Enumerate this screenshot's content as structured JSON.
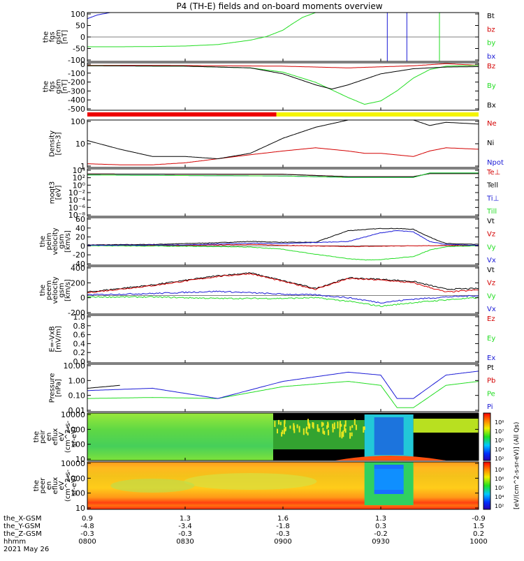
{
  "title": "P4 (TH-E) fields and on-board moments overview",
  "colors": {
    "black": "#000000",
    "red": "#d40000",
    "green": "#22dd22",
    "blue": "#1a1ad6",
    "orbit_red": "#ee0000",
    "orbit_yellow": "#f4f400"
  },
  "chart_data": [
    {
      "type": "line",
      "panel": "fgs-gsm",
      "ylabel": [
        "the",
        "fgs",
        "gsm",
        "[nT]"
      ],
      "yticks": [
        "100",
        "50",
        "0",
        "-50",
        "-100"
      ],
      "ylim": [
        -100,
        100
      ],
      "grid": false,
      "legend_placement": "right",
      "series": [
        {
          "name": "Bt",
          "color": "black",
          "x": [],
          "y": []
        },
        {
          "name": "bz",
          "color": "red",
          "x": [],
          "y": []
        },
        {
          "name": "by",
          "color": "green",
          "x": [
            "08:00",
            "08:10",
            "08:20",
            "08:30",
            "08:40",
            "08:50",
            "08:55",
            "09:00",
            "09:03",
            "09:06",
            "09:10"
          ],
          "y": [
            -40,
            -40,
            -39,
            -37,
            -31,
            -13,
            2,
            28,
            55,
            80,
            100
          ]
        },
        {
          "name": "bx",
          "color": "blue",
          "x": [
            "08:00",
            "08:03",
            "08:07"
          ],
          "y": [
            75,
            90,
            100
          ]
        }
      ],
      "vertical_traces": [
        {
          "color": "blue",
          "x": [
            "09:32",
            "09:38"
          ]
        },
        {
          "color": "green",
          "x": [
            "09:48"
          ]
        }
      ]
    },
    {
      "type": "line",
      "panel": "fgs-gsm-large",
      "ylabel": [
        "the",
        "fgs",
        "gsm",
        "[nT]"
      ],
      "yticks": [
        "0",
        "-100",
        "-200",
        "-300",
        "-400",
        "-500"
      ],
      "ylim": [
        -530,
        30
      ],
      "grid": false,
      "legend_placement": "right",
      "series": [
        {
          "name": "Bz",
          "color": "red",
          "x": [
            "08:00",
            "08:30",
            "09:00",
            "09:20",
            "09:40",
            "09:50",
            "10:00"
          ],
          "y": [
            0,
            -2,
            -10,
            -30,
            -5,
            20,
            0
          ]
        },
        {
          "name": "By",
          "color": "green",
          "x": [
            "08:00",
            "08:30",
            "08:50",
            "09:00",
            "09:10",
            "09:20",
            "09:25",
            "09:30",
            "09:35",
            "09:40",
            "09:45",
            "09:50",
            "10:00"
          ],
          "y": [
            -5,
            -10,
            -30,
            -80,
            -200,
            -380,
            -460,
            -420,
            -300,
            -150,
            -50,
            -10,
            0
          ]
        },
        {
          "name": "Bx",
          "color": "black",
          "x": [
            "08:00",
            "08:30",
            "08:50",
            "09:00",
            "09:10",
            "09:15",
            "09:20",
            "09:30",
            "09:40",
            "09:50",
            "10:00"
          ],
          "y": [
            -5,
            -10,
            -30,
            -100,
            -230,
            -280,
            -230,
            -100,
            -40,
            -20,
            -15
          ]
        }
      ]
    },
    {
      "type": "line",
      "panel": "density",
      "scale": "log",
      "ylabel": [
        "Density",
        "[cm-3]"
      ],
      "yticks": [
        "100",
        "10",
        "1"
      ],
      "ylim": [
        0.5,
        200
      ],
      "grid": false,
      "legend_placement": "right",
      "series": [
        {
          "name": "Ne",
          "color": "red",
          "x": [
            "08:00",
            "08:10",
            "08:20",
            "08:30",
            "08:40",
            "08:50",
            "09:00",
            "09:10",
            "09:20",
            "09:25",
            "09:30",
            "09:40",
            "09:45",
            "09:50",
            "10:00"
          ],
          "y": [
            0.8,
            0.7,
            0.7,
            0.9,
            1.5,
            2.5,
            4,
            6,
            4,
            3,
            3,
            2,
            4,
            6,
            5
          ]
        },
        {
          "name": "Ni",
          "color": "black",
          "x": [
            "08:00",
            "08:10",
            "08:20",
            "08:30",
            "08:40",
            "08:50",
            "09:00",
            "09:10",
            "09:20",
            "09:30",
            "09:40",
            "09:45",
            "09:50",
            "10:00"
          ],
          "y": [
            15,
            5,
            2,
            2,
            1.5,
            3,
            20,
            80,
            200,
            200,
            200,
            100,
            150,
            120
          ]
        },
        {
          "name": "Npot",
          "color": "blue",
          "x": [],
          "y": []
        }
      ]
    },
    {
      "type": "line",
      "panel": "temperature",
      "scale": "log",
      "ylabel": [
        "moqt3",
        "[eV]"
      ],
      "yticks": [
        "10⁴",
        "10²",
        "10⁰",
        "10⁻²",
        "10⁻⁴",
        "10⁻⁶",
        "10⁻⁸"
      ],
      "ylim": [
        1e-09,
        100000.0
      ],
      "grid": false,
      "legend_placement": "right",
      "series": [
        {
          "name": "Te⊥",
          "color": "red",
          "x": [
            "08:00",
            "09:00",
            "09:20",
            "09:40",
            "09:45",
            "10:00"
          ],
          "y": [
            3000,
            2500,
            500,
            500,
            4000,
            4000
          ]
        },
        {
          "name": "Tell",
          "color": "black",
          "x": [
            "08:00",
            "09:00",
            "09:20",
            "09:40",
            "09:45",
            "10:00"
          ],
          "y": [
            3000,
            2500,
            500,
            500,
            4000,
            4000
          ]
        },
        {
          "name": "Ti⊥",
          "color": "blue",
          "x": [
            "08:00",
            "09:00",
            "09:20",
            "09:40",
            "09:45",
            "10:00"
          ],
          "y": [
            1500,
            800,
            300,
            300,
            6000,
            6000
          ]
        },
        {
          "name": "Till",
          "color": "green",
          "x": [
            "08:00",
            "09:00",
            "09:20",
            "09:40",
            "09:45",
            "10:00"
          ],
          "y": [
            1500,
            800,
            300,
            300,
            6000,
            6000
          ]
        }
      ]
    },
    {
      "type": "line",
      "panel": "peim-velocity",
      "ylabel": [
        "the",
        "peim",
        "velocity",
        "gsm",
        "[km/s]"
      ],
      "yticks": [
        "60",
        "40",
        "20",
        "0",
        "-20",
        "-40"
      ],
      "ylim": [
        -45,
        65
      ],
      "grid": false,
      "legend_placement": "right",
      "series": [
        {
          "name": "Vt",
          "color": "black",
          "x": [
            "08:00",
            "08:20",
            "08:40",
            "08:50",
            "09:00",
            "09:10",
            "09:20",
            "09:30",
            "09:35",
            "09:40",
            "09:45",
            "09:50",
            "10:00"
          ],
          "y": [
            2,
            3,
            7,
            10,
            8,
            8,
            35,
            40,
            40,
            38,
            20,
            5,
            3
          ]
        },
        {
          "name": "Vz",
          "color": "red",
          "x": [
            "08:00",
            "08:30",
            "08:50",
            "09:00",
            "09:20",
            "09:40",
            "10:00"
          ],
          "y": [
            1,
            1,
            3,
            1,
            -2,
            0,
            1
          ]
        },
        {
          "name": "Vy",
          "color": "green",
          "x": [
            "08:00",
            "08:30",
            "08:50",
            "09:00",
            "09:10",
            "09:20",
            "09:25",
            "09:30",
            "09:40",
            "09:45",
            "09:50",
            "10:00"
          ],
          "y": [
            0,
            -1,
            -3,
            -8,
            -20,
            -30,
            -33,
            -32,
            -25,
            -10,
            -2,
            0
          ]
        },
        {
          "name": "Vx",
          "color": "blue",
          "x": [
            "08:00",
            "08:30",
            "08:50",
            "09:00",
            "09:20",
            "09:30",
            "09:35",
            "09:40",
            "09:45",
            "09:50",
            "10:00"
          ],
          "y": [
            1,
            2,
            6,
            5,
            10,
            30,
            35,
            32,
            10,
            3,
            1
          ]
        }
      ]
    },
    {
      "type": "line",
      "panel": "peem-velocity",
      "ylabel": [
        "the",
        "peem",
        "velocity",
        "gsm",
        "[km/s]"
      ],
      "yticks": [
        "400",
        "200",
        "0",
        "-200"
      ],
      "ylim": [
        -260,
        410
      ],
      "grid": false,
      "legend_placement": "right",
      "series": [
        {
          "name": "Vt",
          "color": "black",
          "x": [
            "08:00",
            "08:20",
            "08:40",
            "08:50",
            "09:00",
            "09:10",
            "09:20",
            "09:30",
            "09:40",
            "09:50",
            "10:00"
          ],
          "y": [
            50,
            150,
            280,
            320,
            210,
            100,
            250,
            230,
            200,
            90,
            100
          ]
        },
        {
          "name": "Vz",
          "color": "red",
          "x": [
            "08:00",
            "08:20",
            "08:40",
            "08:50",
            "09:00",
            "09:10",
            "09:20",
            "09:30",
            "09:40",
            "09:50",
            "10:00"
          ],
          "y": [
            40,
            140,
            270,
            310,
            200,
            90,
            240,
            220,
            180,
            50,
            80
          ]
        },
        {
          "name": "Vy",
          "color": "green",
          "x": [
            "08:00",
            "08:20",
            "08:40",
            "09:00",
            "09:10",
            "09:20",
            "09:30",
            "09:40",
            "09:50",
            "10:00"
          ],
          "y": [
            -20,
            -20,
            -40,
            -40,
            -30,
            -80,
            -150,
            -100,
            -60,
            -30
          ]
        },
        {
          "name": "Vx",
          "color": "blue",
          "x": [
            "08:00",
            "08:20",
            "08:40",
            "09:00",
            "09:10",
            "09:20",
            "09:30",
            "09:40",
            "09:50",
            "10:00"
          ],
          "y": [
            10,
            30,
            60,
            20,
            10,
            -30,
            -100,
            -50,
            -20,
            0
          ]
        }
      ]
    },
    {
      "type": "line",
      "panel": "e-field",
      "ylabel": [
        "E=-VxB",
        "[mV/m]"
      ],
      "yticks": [
        "1.0",
        "0.8",
        "0.6",
        "0.4",
        "0.2",
        "0.0"
      ],
      "ylim": [
        0,
        1
      ],
      "grid": false,
      "legend_placement": "right",
      "series": [
        {
          "name": "Ez",
          "color": "red",
          "x": [],
          "y": []
        },
        {
          "name": "Ey",
          "color": "green",
          "x": [],
          "y": []
        },
        {
          "name": "Ex",
          "color": "blue",
          "x": [],
          "y": []
        }
      ]
    },
    {
      "type": "line",
      "panel": "pressure",
      "scale": "log",
      "ylabel": [
        "Pressure",
        "[nPa]"
      ],
      "yticks": [
        "10.00",
        "1.00",
        "0.10",
        "0.01"
      ],
      "ylim": [
        0.005,
        20
      ],
      "grid": false,
      "legend_placement": "right",
      "series": [
        {
          "name": "Pt",
          "color": "black",
          "x": [
            "08:00",
            "08:10"
          ],
          "y": [
            0.3,
            0.5
          ]
        },
        {
          "name": "Pb",
          "color": "red",
          "x": [],
          "y": []
        },
        {
          "name": "Pe",
          "color": "green",
          "x": [
            "08:00",
            "08:20",
            "08:40",
            "09:00",
            "09:20",
            "09:30",
            "09:35",
            "09:40",
            "09:50",
            "10:00"
          ],
          "y": [
            0.05,
            0.06,
            0.05,
            0.4,
            1,
            0.5,
            0.01,
            0.01,
            0.5,
            1
          ]
        },
        {
          "name": "Pi",
          "color": "blue",
          "x": [
            "08:00",
            "08:20",
            "08:40",
            "09:00",
            "09:20",
            "09:30",
            "09:35",
            "09:40",
            "09:50",
            "10:00"
          ],
          "y": [
            0.2,
            0.3,
            0.05,
            1,
            5,
            3,
            0.05,
            0.05,
            3,
            6
          ]
        }
      ]
    },
    {
      "type": "heatmap",
      "panel": "peir-en-eflux",
      "ylabel": [
        "the",
        "peir",
        "en",
        "eflux",
        "eV",
        "(cm^2-s-",
        "sr-eV)"
      ],
      "yticks": [
        "10000",
        "1000",
        "100",
        "10"
      ],
      "ylim": [
        7,
        20000
      ],
      "scale": "log"
    },
    {
      "type": "heatmap",
      "panel": "peer-en-eflux",
      "ylabel": [
        "the",
        "peer",
        "en",
        "eflux",
        "eV",
        "(cm^2-s-",
        "sr-eV)"
      ],
      "yticks": [
        "10000",
        "1000",
        "100",
        "10"
      ],
      "ylim": [
        7,
        20000
      ],
      "scale": "log"
    }
  ],
  "colorbar": {
    "label": "[eV/(cm^2-s-sr-eV)] (All Qs)",
    "label2": "[eV/(cm^2-s-sr-eV)]",
    "ticks": [
      "10⁸",
      "10⁷",
      "10⁵",
      "10⁴",
      "10²"
    ],
    "ticks2": [
      "10⁸",
      "10⁶",
      "10⁵",
      "10⁴",
      "10²"
    ]
  },
  "xaxis": {
    "rows": [
      {
        "label": "the_X-GSM",
        "values": [
          "0.9",
          "1.3",
          "1.6",
          "1.3",
          "-0.9"
        ]
      },
      {
        "label": "the_Y-GSM",
        "values": [
          "-4.8",
          "-3.4",
          "-1.8",
          "0.3",
          "1.5"
        ]
      },
      {
        "label": "the_Z-GSM",
        "values": [
          "-0.3",
          "-0.3",
          "-0.3",
          "-0.2",
          "0.2"
        ]
      },
      {
        "label": "hhmm",
        "values": [
          "0800",
          "0830",
          "0900",
          "0930",
          "1000"
        ]
      }
    ],
    "date": "2021 May 26"
  }
}
